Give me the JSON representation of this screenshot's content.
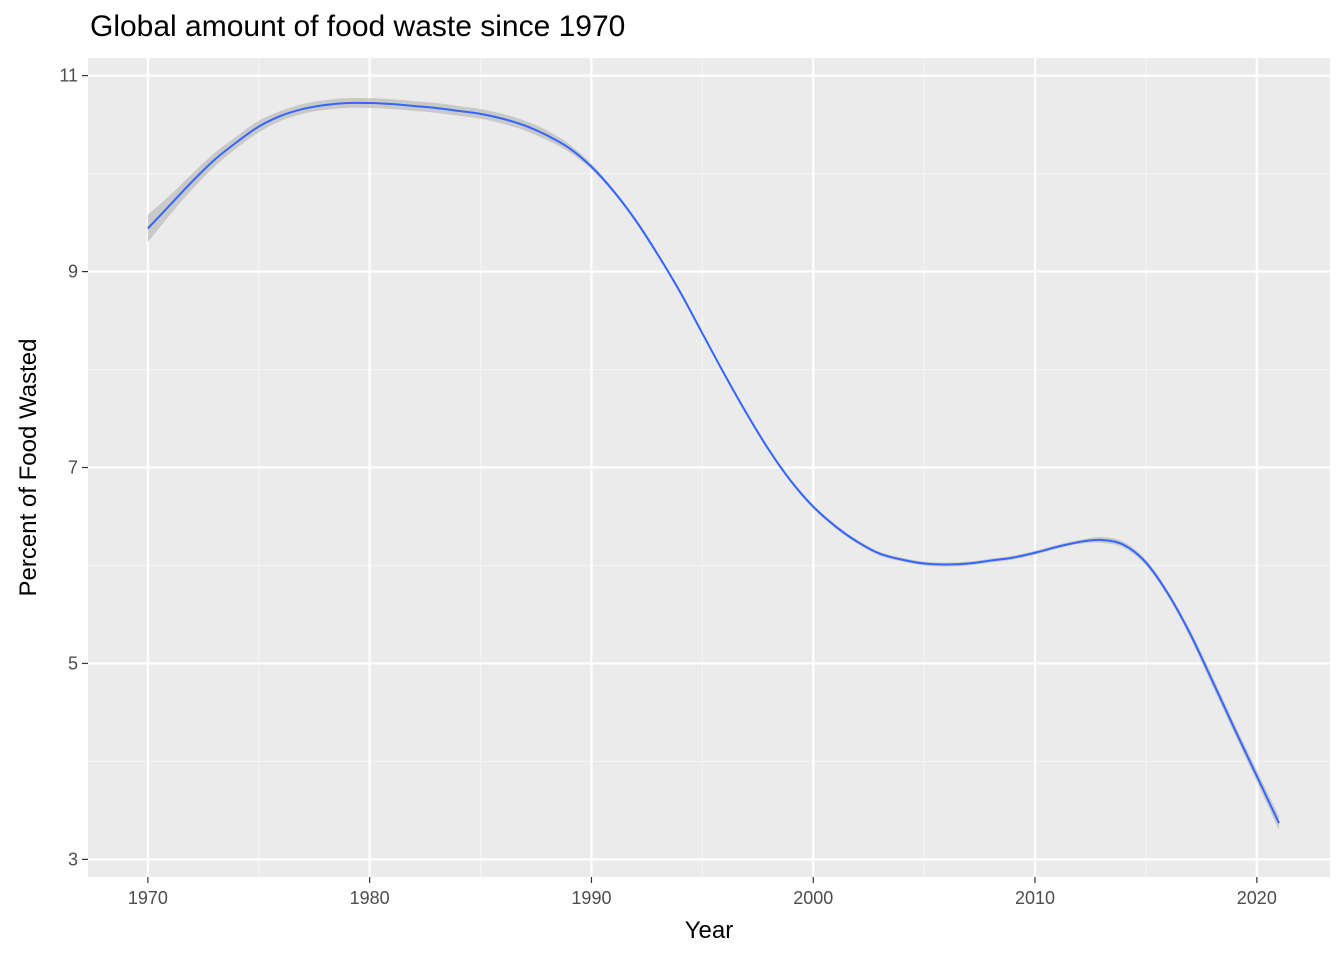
{
  "chart_data": {
    "type": "line",
    "title": "Global amount of food waste since 1970",
    "xlabel": "Year",
    "ylabel": "Percent of Food Wasted",
    "xlim": [
      1967.3,
      2023.3
    ],
    "ylim": [
      2.82,
      11.18
    ],
    "x_ticks": [
      1970,
      1980,
      1990,
      2000,
      2010,
      2020
    ],
    "x_tick_labels": [
      "1970",
      "1980",
      "1990",
      "2000",
      "2010",
      "2020"
    ],
    "y_ticks": [
      3,
      5,
      7,
      9,
      11
    ],
    "y_tick_labels": [
      "3",
      "5",
      "7",
      "9",
      "11"
    ],
    "grid": true,
    "smooth_method": "loess with confidence band",
    "series": [
      {
        "color": "#3366ff",
        "band_color": "#bdbdbd",
        "x": [
          1970,
          1971,
          1972,
          1973,
          1974,
          1975,
          1976,
          1977,
          1978,
          1979,
          1980,
          1981,
          1982,
          1983,
          1984,
          1985,
          1986,
          1987,
          1988,
          1989,
          1990,
          1991,
          1992,
          1993,
          1994,
          1995,
          1996,
          1997,
          1998,
          1999,
          2000,
          2001,
          2002,
          2003,
          2004,
          2005,
          2006,
          2007,
          2008,
          2009,
          2010,
          2011,
          2012,
          2013,
          2014,
          2015,
          2016,
          2017,
          2018,
          2019,
          2020,
          2021
        ],
        "values": [
          9.44,
          9.68,
          9.92,
          10.14,
          10.32,
          10.48,
          10.59,
          10.66,
          10.7,
          10.72,
          10.72,
          10.71,
          10.69,
          10.67,
          10.64,
          10.61,
          10.56,
          10.49,
          10.39,
          10.26,
          10.07,
          9.82,
          9.52,
          9.17,
          8.79,
          8.37,
          7.95,
          7.55,
          7.18,
          6.86,
          6.6,
          6.4,
          6.24,
          6.12,
          6.06,
          6.02,
          6.01,
          6.02,
          6.05,
          6.08,
          6.13,
          6.19,
          6.24,
          6.26,
          6.21,
          6.03,
          5.71,
          5.3,
          4.82,
          4.33,
          3.85,
          3.37
        ],
        "ci_lower": [
          9.3,
          9.58,
          9.84,
          10.07,
          10.26,
          10.42,
          10.54,
          10.61,
          10.65,
          10.67,
          10.67,
          10.66,
          10.64,
          10.62,
          10.59,
          10.56,
          10.51,
          10.44,
          10.34,
          10.22,
          10.04,
          9.8,
          9.5,
          9.15,
          8.77,
          8.35,
          7.93,
          7.53,
          7.16,
          6.84,
          6.58,
          6.38,
          6.22,
          6.1,
          6.04,
          6.0,
          5.99,
          6.0,
          6.03,
          6.06,
          6.11,
          6.17,
          6.22,
          6.23,
          6.18,
          6.0,
          5.68,
          5.26,
          4.77,
          4.28,
          3.79,
          3.3
        ],
        "ci_upper": [
          9.58,
          9.78,
          10.0,
          10.21,
          10.38,
          10.54,
          10.64,
          10.71,
          10.75,
          10.77,
          10.77,
          10.76,
          10.74,
          10.72,
          10.69,
          10.66,
          10.61,
          10.54,
          10.44,
          10.3,
          10.1,
          9.84,
          9.54,
          9.19,
          8.81,
          8.39,
          7.97,
          7.57,
          7.2,
          6.88,
          6.62,
          6.42,
          6.26,
          6.14,
          6.08,
          6.04,
          6.03,
          6.04,
          6.07,
          6.1,
          6.15,
          6.21,
          6.26,
          6.29,
          6.24,
          6.06,
          5.74,
          5.34,
          4.87,
          4.38,
          3.91,
          3.44
        ]
      }
    ]
  },
  "colors": {
    "panel_background": "#ebebeb",
    "grid_major": "#ffffff",
    "grid_minor": "#f5f5f5",
    "axis_tick": "#333333",
    "tick_text": "#4d4d4d"
  }
}
